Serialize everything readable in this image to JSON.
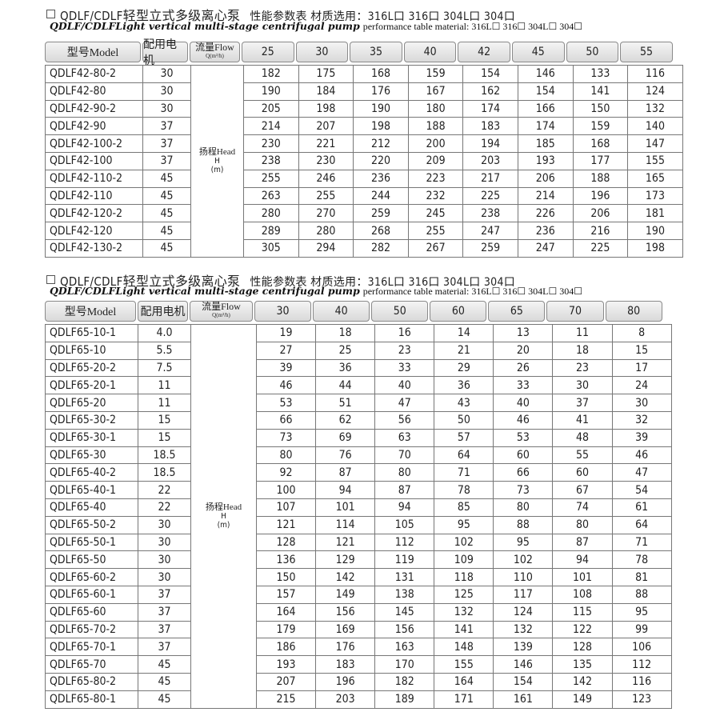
{
  "tables": [
    {
      "title_model": "QDLF/CDLF",
      "title_cn": "轻型立式多级离心泵",
      "title_spec": "性能参数表  材质选用：316L口 316口 304L口 304口",
      "subtitle_bold": "QDLF/CDLFLight vertical multi-stage centrifugal pump",
      "subtitle_rest": "performance table  material: 316L☐  316☐  304L☐  304☐",
      "header": {
        "model": "型号Model",
        "motor": "配用电机",
        "flow": "流量Flow",
        "flow_unit": "Q(m³/h)"
      },
      "flows": [
        "25",
        "30",
        "35",
        "40",
        "42",
        "45",
        "50",
        "55"
      ],
      "head_label": "扬程Head",
      "head_symbol": "H",
      "head_unit": "(m)",
      "rows": [
        {
          "model": "QDLF42-80-2",
          "motor": "30",
          "values": [
            "182",
            "175",
            "168",
            "159",
            "154",
            "146",
            "133",
            "116"
          ]
        },
        {
          "model": "QDLF42-80",
          "motor": "30",
          "values": [
            "190",
            "184",
            "176",
            "167",
            "162",
            "154",
            "141",
            "124"
          ]
        },
        {
          "model": "QDLF42-90-2",
          "motor": "30",
          "values": [
            "205",
            "198",
            "190",
            "180",
            "174",
            "166",
            "150",
            "132"
          ]
        },
        {
          "model": "QDLF42-90",
          "motor": "37",
          "values": [
            "214",
            "207",
            "198",
            "188",
            "183",
            "174",
            "159",
            "140"
          ]
        },
        {
          "model": "QDLF42-100-2",
          "motor": "37",
          "values": [
            "230",
            "221",
            "212",
            "200",
            "194",
            "185",
            "168",
            "147"
          ]
        },
        {
          "model": "QDLF42-100",
          "motor": "37",
          "values": [
            "238",
            "230",
            "220",
            "209",
            "203",
            "193",
            "177",
            "155"
          ]
        },
        {
          "model": "QDLF42-110-2",
          "motor": "45",
          "values": [
            "255",
            "246",
            "236",
            "223",
            "217",
            "206",
            "188",
            "165"
          ]
        },
        {
          "model": "QDLF42-110",
          "motor": "45",
          "values": [
            "263",
            "255",
            "244",
            "232",
            "225",
            "214",
            "196",
            "173"
          ]
        },
        {
          "model": "QDLF42-120-2",
          "motor": "45",
          "values": [
            "280",
            "270",
            "259",
            "245",
            "238",
            "226",
            "206",
            "181"
          ]
        },
        {
          "model": "QDLF42-120",
          "motor": "45",
          "values": [
            "289",
            "280",
            "268",
            "255",
            "247",
            "236",
            "216",
            "190"
          ]
        },
        {
          "model": "QDLF42-130-2",
          "motor": "45",
          "values": [
            "305",
            "294",
            "282",
            "267",
            "259",
            "247",
            "225",
            "198"
          ]
        }
      ]
    },
    {
      "title_model": "QDLF/CDLF",
      "title_cn": "轻型立式多级离心泵",
      "title_spec": "性能参数表  材质选用：316L口 316口 304L口 304口",
      "subtitle_bold": "QDLF/CDLFLight vertical multi-stage centrifugal pump",
      "subtitle_rest": "performance table  material: 316L☐  316☐  304L☐  304☐",
      "header": {
        "model": "型号Model",
        "motor": "配用电机",
        "flow": "流量Flow",
        "flow_unit": "Q(m³/h)"
      },
      "flows": [
        "30",
        "40",
        "50",
        "60",
        "65",
        "70",
        "80"
      ],
      "head_label": "扬程Head",
      "head_symbol": "H",
      "head_unit": "(m)",
      "rows": [
        {
          "model": "QDLF65-10-1",
          "motor": "4.0",
          "values": [
            "19",
            "18",
            "16",
            "14",
            "13",
            "11",
            "8"
          ]
        },
        {
          "model": "QDLF65-10",
          "motor": "5.5",
          "values": [
            "27",
            "25",
            "23",
            "21",
            "20",
            "18",
            "15"
          ]
        },
        {
          "model": "QDLF65-20-2",
          "motor": "7.5",
          "values": [
            "39",
            "36",
            "33",
            "29",
            "26",
            "23",
            "17"
          ]
        },
        {
          "model": "QDLF65-20-1",
          "motor": "11",
          "values": [
            "46",
            "44",
            "40",
            "36",
            "33",
            "30",
            "24"
          ]
        },
        {
          "model": "QDLF65-20",
          "motor": "11",
          "values": [
            "53",
            "51",
            "47",
            "43",
            "40",
            "37",
            "30"
          ]
        },
        {
          "model": "QDLF65-30-2",
          "motor": "15",
          "values": [
            "66",
            "62",
            "56",
            "50",
            "46",
            "41",
            "32"
          ]
        },
        {
          "model": "QDLF65-30-1",
          "motor": "15",
          "values": [
            "73",
            "69",
            "63",
            "57",
            "53",
            "48",
            "39"
          ]
        },
        {
          "model": "QDLF65-30",
          "motor": "18.5",
          "values": [
            "80",
            "76",
            "70",
            "64",
            "60",
            "55",
            "46"
          ]
        },
        {
          "model": "QDLF65-40-2",
          "motor": "18.5",
          "values": [
            "92",
            "87",
            "80",
            "71",
            "66",
            "60",
            "47"
          ]
        },
        {
          "model": "QDLF65-40-1",
          "motor": "22",
          "values": [
            "100",
            "94",
            "87",
            "78",
            "73",
            "67",
            "54"
          ]
        },
        {
          "model": "QDLF65-40",
          "motor": "22",
          "values": [
            "107",
            "101",
            "94",
            "85",
            "80",
            "74",
            "61"
          ]
        },
        {
          "model": "QDLF65-50-2",
          "motor": "30",
          "values": [
            "121",
            "114",
            "105",
            "95",
            "88",
            "80",
            "64"
          ]
        },
        {
          "model": "QDLF65-50-1",
          "motor": "30",
          "values": [
            "128",
            "121",
            "112",
            "102",
            "95",
            "87",
            "71"
          ]
        },
        {
          "model": "QDLF65-50",
          "motor": "30",
          "values": [
            "136",
            "129",
            "119",
            "109",
            "102",
            "94",
            "78"
          ]
        },
        {
          "model": "QDLF65-60-2",
          "motor": "30",
          "values": [
            "150",
            "142",
            "131",
            "118",
            "110",
            "101",
            "81"
          ]
        },
        {
          "model": "QDLF65-60-1",
          "motor": "37",
          "values": [
            "157",
            "149",
            "138",
            "125",
            "117",
            "108",
            "88"
          ]
        },
        {
          "model": "QDLF65-60",
          "motor": "37",
          "values": [
            "164",
            "156",
            "145",
            "132",
            "124",
            "115",
            "95"
          ]
        },
        {
          "model": "QDLF65-70-2",
          "motor": "37",
          "values": [
            "179",
            "169",
            "156",
            "141",
            "132",
            "122",
            "99"
          ]
        },
        {
          "model": "QDLF65-70-1",
          "motor": "37",
          "values": [
            "186",
            "176",
            "163",
            "148",
            "139",
            "128",
            "106"
          ]
        },
        {
          "model": "QDLF65-70",
          "motor": "45",
          "values": [
            "193",
            "183",
            "170",
            "155",
            "146",
            "135",
            "112"
          ]
        },
        {
          "model": "QDLF65-80-2",
          "motor": "45",
          "values": [
            "207",
            "196",
            "182",
            "164",
            "154",
            "142",
            "116"
          ]
        },
        {
          "model": "QDLF65-80-1",
          "motor": "45",
          "values": [
            "215",
            "203",
            "189",
            "171",
            "161",
            "149",
            "123"
          ]
        }
      ]
    }
  ]
}
